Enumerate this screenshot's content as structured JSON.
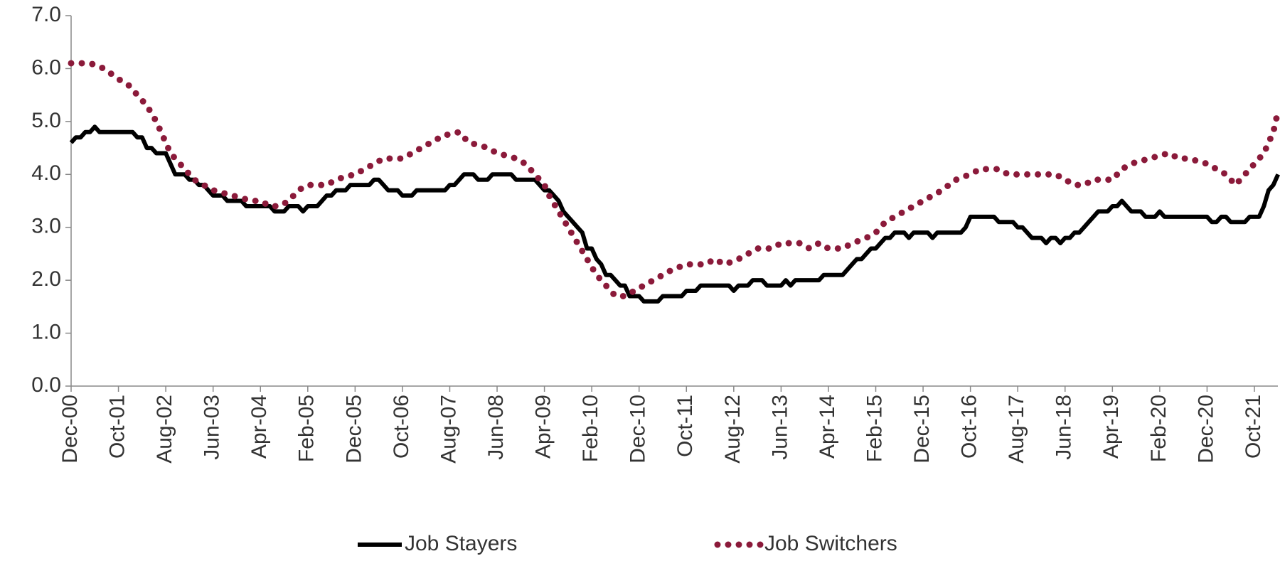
{
  "chart_data": {
    "type": "line",
    "categories": [
      "Dec-00",
      null,
      null,
      null,
      null,
      null,
      null,
      null,
      null,
      null,
      "Oct-01",
      null,
      null,
      null,
      null,
      null,
      null,
      null,
      null,
      null,
      "Aug-02",
      null,
      null,
      null,
      null,
      null,
      null,
      null,
      null,
      null,
      "Jun-03",
      null,
      null,
      null,
      null,
      null,
      null,
      null,
      null,
      null,
      "Apr-04",
      null,
      null,
      null,
      null,
      null,
      null,
      null,
      null,
      null,
      "Feb-05",
      null,
      null,
      null,
      null,
      null,
      null,
      null,
      null,
      null,
      "Dec-05",
      null,
      null,
      null,
      null,
      null,
      null,
      null,
      null,
      null,
      "Oct-06",
      null,
      null,
      null,
      null,
      null,
      null,
      null,
      null,
      null,
      "Aug-07",
      null,
      null,
      null,
      null,
      null,
      null,
      null,
      null,
      null,
      "Jun-08",
      null,
      null,
      null,
      null,
      null,
      null,
      null,
      null,
      null,
      "Apr-09",
      null,
      null,
      null,
      null,
      null,
      null,
      null,
      null,
      null,
      "Feb-10",
      null,
      null,
      null,
      null,
      null,
      null,
      null,
      null,
      null,
      "Dec-10",
      null,
      null,
      null,
      null,
      null,
      null,
      null,
      null,
      null,
      "Oct-11",
      null,
      null,
      null,
      null,
      null,
      null,
      null,
      null,
      null,
      "Aug-12",
      null,
      null,
      null,
      null,
      null,
      null,
      null,
      null,
      null,
      "Jun-13",
      null,
      null,
      null,
      null,
      null,
      null,
      null,
      null,
      null,
      "Apr-14",
      null,
      null,
      null,
      null,
      null,
      null,
      null,
      null,
      null,
      "Feb-15",
      null,
      null,
      null,
      null,
      null,
      null,
      null,
      null,
      null,
      "Dec-15",
      null,
      null,
      null,
      null,
      null,
      null,
      null,
      null,
      null,
      "Oct-16",
      null,
      null,
      null,
      null,
      null,
      null,
      null,
      null,
      null,
      "Aug-17",
      null,
      null,
      null,
      null,
      null,
      null,
      null,
      null,
      null,
      "Jun-18",
      null,
      null,
      null,
      null,
      null,
      null,
      null,
      null,
      null,
      "Apr-19",
      null,
      null,
      null,
      null,
      null,
      null,
      null,
      null,
      null,
      "Feb-20",
      null,
      null,
      null,
      null,
      null,
      null,
      null,
      null,
      null,
      "Dec-20",
      null,
      null,
      null,
      null,
      null,
      null,
      null,
      null,
      null,
      "Oct-21",
      null,
      null,
      null,
      null,
      null
    ],
    "series": [
      {
        "name": "Job Stayers",
        "color": "#000000",
        "style": "solid",
        "values": [
          4.6,
          4.7,
          4.7,
          4.8,
          4.8,
          4.9,
          4.8,
          4.8,
          4.8,
          4.8,
          4.8,
          4.8,
          4.8,
          4.8,
          4.7,
          4.7,
          4.5,
          4.5,
          4.4,
          4.4,
          4.4,
          4.2,
          4.0,
          4.0,
          4.0,
          3.9,
          3.9,
          3.8,
          3.8,
          3.7,
          3.6,
          3.6,
          3.6,
          3.5,
          3.5,
          3.5,
          3.5,
          3.4,
          3.4,
          3.4,
          3.4,
          3.4,
          3.4,
          3.3,
          3.3,
          3.3,
          3.4,
          3.4,
          3.4,
          3.3,
          3.4,
          3.4,
          3.4,
          3.5,
          3.6,
          3.6,
          3.7,
          3.7,
          3.7,
          3.8,
          3.8,
          3.8,
          3.8,
          3.8,
          3.9,
          3.9,
          3.8,
          3.7,
          3.7,
          3.7,
          3.6,
          3.6,
          3.6,
          3.7,
          3.7,
          3.7,
          3.7,
          3.7,
          3.7,
          3.7,
          3.8,
          3.8,
          3.9,
          4.0,
          4.0,
          4.0,
          3.9,
          3.9,
          3.9,
          4.0,
          4.0,
          4.0,
          4.0,
          4.0,
          3.9,
          3.9,
          3.9,
          3.9,
          3.9,
          3.8,
          3.7,
          3.7,
          3.6,
          3.5,
          3.3,
          3.2,
          3.1,
          3.0,
          2.9,
          2.6,
          2.6,
          2.4,
          2.3,
          2.1,
          2.1,
          2.0,
          1.9,
          1.9,
          1.7,
          1.7,
          1.7,
          1.6,
          1.6,
          1.6,
          1.6,
          1.7,
          1.7,
          1.7,
          1.7,
          1.7,
          1.8,
          1.8,
          1.8,
          1.9,
          1.9,
          1.9,
          1.9,
          1.9,
          1.9,
          1.9,
          1.8,
          1.9,
          1.9,
          1.9,
          2.0,
          2.0,
          2.0,
          1.9,
          1.9,
          1.9,
          1.9,
          2.0,
          1.9,
          2.0,
          2.0,
          2.0,
          2.0,
          2.0,
          2.0,
          2.1,
          2.1,
          2.1,
          2.1,
          2.1,
          2.2,
          2.3,
          2.4,
          2.4,
          2.5,
          2.6,
          2.6,
          2.7,
          2.8,
          2.8,
          2.9,
          2.9,
          2.9,
          2.8,
          2.9,
          2.9,
          2.9,
          2.9,
          2.8,
          2.9,
          2.9,
          2.9,
          2.9,
          2.9,
          2.9,
          3.0,
          3.2,
          3.2,
          3.2,
          3.2,
          3.2,
          3.2,
          3.1,
          3.1,
          3.1,
          3.1,
          3.0,
          3.0,
          2.9,
          2.8,
          2.8,
          2.8,
          2.7,
          2.8,
          2.8,
          2.7,
          2.8,
          2.8,
          2.9,
          2.9,
          3.0,
          3.1,
          3.2,
          3.3,
          3.3,
          3.3,
          3.4,
          3.4,
          3.5,
          3.4,
          3.3,
          3.3,
          3.3,
          3.2,
          3.2,
          3.2,
          3.3,
          3.2,
          3.2,
          3.2,
          3.2,
          3.2,
          3.2,
          3.2,
          3.2,
          3.2,
          3.2,
          3.1,
          3.1,
          3.2,
          3.2,
          3.1,
          3.1,
          3.1,
          3.1,
          3.2,
          3.2,
          3.2,
          3.4,
          3.7,
          3.8,
          4.0
        ]
      },
      {
        "name": "Job Switchers",
        "color": "#8b1a3a",
        "style": "dotted",
        "values": [
          6.1,
          6.1,
          6.1,
          6.1,
          6.1,
          6.07,
          6.03,
          6.0,
          5.93,
          5.87,
          5.8,
          5.75,
          5.7,
          5.6,
          5.5,
          5.4,
          5.3,
          5.15,
          5.0,
          4.8,
          4.6,
          4.4,
          4.3,
          4.2,
          4.1,
          4.0,
          3.9,
          3.85,
          3.8,
          3.75,
          3.7,
          3.68,
          3.65,
          3.63,
          3.6,
          3.58,
          3.55,
          3.53,
          3.5,
          3.5,
          3.5,
          3.45,
          3.4,
          3.4,
          3.4,
          3.45,
          3.5,
          3.6,
          3.7,
          3.75,
          3.8,
          3.8,
          3.8,
          3.8,
          3.8,
          3.85,
          3.9,
          3.93,
          3.95,
          3.98,
          4.0,
          4.05,
          4.1,
          4.15,
          4.2,
          4.25,
          4.3,
          4.3,
          4.3,
          4.3,
          4.3,
          4.35,
          4.4,
          4.45,
          4.5,
          4.55,
          4.6,
          4.65,
          4.7,
          4.75,
          4.75,
          4.78,
          4.8,
          4.7,
          4.6,
          4.58,
          4.55,
          4.53,
          4.5,
          4.45,
          4.4,
          4.38,
          4.35,
          4.33,
          4.3,
          4.25,
          4.2,
          4.1,
          4.0,
          3.9,
          3.8,
          3.6,
          3.45,
          3.3,
          3.15,
          3.0,
          2.85,
          2.7,
          2.55,
          2.4,
          2.25,
          2.1,
          2.0,
          1.9,
          1.8,
          1.7,
          1.7,
          1.7,
          1.75,
          1.8,
          1.85,
          1.9,
          1.95,
          2.0,
          2.05,
          2.1,
          2.15,
          2.2,
          2.23,
          2.27,
          2.3,
          2.3,
          2.3,
          2.3,
          2.3,
          2.35,
          2.4,
          2.35,
          2.3,
          2.33,
          2.37,
          2.4,
          2.45,
          2.5,
          2.55,
          2.6,
          2.6,
          2.6,
          2.6,
          2.65,
          2.7,
          2.7,
          2.7,
          2.7,
          2.7,
          2.65,
          2.6,
          2.65,
          2.7,
          2.65,
          2.6,
          2.6,
          2.6,
          2.6,
          2.65,
          2.7,
          2.73,
          2.77,
          2.8,
          2.85,
          2.9,
          3.0,
          3.1,
          3.15,
          3.2,
          3.25,
          3.3,
          3.35,
          3.4,
          3.45,
          3.5,
          3.55,
          3.6,
          3.65,
          3.7,
          3.77,
          3.83,
          3.9,
          3.93,
          3.97,
          4.0,
          4.05,
          4.1,
          4.1,
          4.1,
          4.1,
          4.1,
          4.05,
          4.0,
          4.0,
          4.0,
          4.0,
          4.0,
          4.0,
          4.0,
          4.0,
          4.0,
          4.0,
          4.0,
          3.95,
          3.9,
          3.85,
          3.8,
          3.8,
          3.8,
          3.85,
          3.9,
          3.9,
          3.9,
          3.9,
          3.9,
          4.0,
          4.1,
          4.15,
          4.2,
          4.23,
          4.25,
          4.28,
          4.3,
          4.33,
          4.35,
          4.38,
          4.4,
          4.35,
          4.3,
          4.3,
          4.3,
          4.28,
          4.25,
          4.23,
          4.2,
          4.15,
          4.1,
          4.05,
          4.0,
          3.9,
          3.8,
          3.9,
          4.0,
          4.1,
          4.2,
          4.3,
          4.4,
          4.6,
          4.8,
          5.2
        ]
      }
    ],
    "ylim": [
      0,
      7
    ],
    "yticks": [
      {
        "value": 0,
        "label": "0.0"
      },
      {
        "value": 1,
        "label": "1.0"
      },
      {
        "value": 2,
        "label": "2.0"
      },
      {
        "value": 3,
        "label": "3.0"
      },
      {
        "value": 4,
        "label": "4.0"
      },
      {
        "value": 5,
        "label": "5.0"
      },
      {
        "value": 6,
        "label": "6.0"
      },
      {
        "value": 7,
        "label": "7.0"
      }
    ],
    "grid": false,
    "legend": "bottom"
  }
}
